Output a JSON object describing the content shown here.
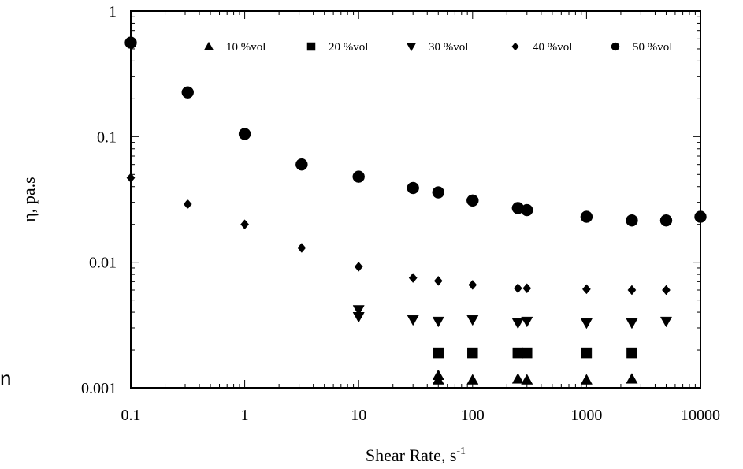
{
  "chart_data": {
    "type": "scatter",
    "title": "",
    "xlabel": "Shear Rate, s",
    "xlabel_sup": "-1",
    "ylabel": "η, pa.s",
    "x_scale": "log",
    "y_scale": "log",
    "xlim": [
      0.1,
      10000
    ],
    "ylim": [
      0.001,
      1
    ],
    "x_ticks": [
      {
        "value": 0.1,
        "label": "0.1"
      },
      {
        "value": 1,
        "label": "1"
      },
      {
        "value": 10,
        "label": "10"
      },
      {
        "value": 100,
        "label": "100"
      },
      {
        "value": 1000,
        "label": "1000"
      },
      {
        "value": 10000,
        "label": "10000"
      }
    ],
    "y_ticks": [
      {
        "value": 0.001,
        "label": "0.001"
      },
      {
        "value": 0.01,
        "label": "0.01"
      },
      {
        "value": 0.1,
        "label": "0.1"
      },
      {
        "value": 1,
        "label": "1"
      }
    ],
    "grid": false,
    "legend_position": "top",
    "series": [
      {
        "name": "10 %vol",
        "marker": "triangle-up",
        "x": [
          50,
          50,
          100,
          250,
          300,
          1000,
          2500
        ],
        "y": [
          0.00125,
          0.00115,
          0.00115,
          0.00117,
          0.00115,
          0.00115,
          0.00117
        ]
      },
      {
        "name": "20 %vol",
        "marker": "square",
        "x": [
          50,
          100,
          250,
          300,
          1000,
          2500
        ],
        "y": [
          0.0019,
          0.0019,
          0.0019,
          0.0019,
          0.0019,
          0.0019
        ]
      },
      {
        "name": "30 %vol",
        "marker": "triangle-down",
        "x": [
          10,
          10,
          30,
          50,
          100,
          250,
          300,
          1000,
          2500,
          5000
        ],
        "y": [
          0.0042,
          0.0037,
          0.0035,
          0.0034,
          0.0035,
          0.0033,
          0.0034,
          0.0033,
          0.0033,
          0.0034
        ]
      },
      {
        "name": "40 %vol",
        "marker": "diamond",
        "x": [
          0.1,
          0.316,
          1,
          3.16,
          10,
          30,
          50,
          100,
          250,
          300,
          1000,
          2500,
          5000
        ],
        "y": [
          0.047,
          0.029,
          0.02,
          0.013,
          0.0092,
          0.0075,
          0.0071,
          0.0066,
          0.0062,
          0.0062,
          0.0061,
          0.006,
          0.006
        ]
      },
      {
        "name": "50 %vol",
        "marker": "circle",
        "x": [
          0.1,
          0.316,
          1,
          3.16,
          10,
          30,
          50,
          100,
          250,
          300,
          1000,
          2500,
          5000,
          10000
        ],
        "y": [
          0.56,
          0.225,
          0.105,
          0.06,
          0.048,
          0.039,
          0.036,
          0.031,
          0.027,
          0.026,
          0.023,
          0.0215,
          0.0215,
          0.023
        ]
      }
    ]
  },
  "stray_text": "n"
}
